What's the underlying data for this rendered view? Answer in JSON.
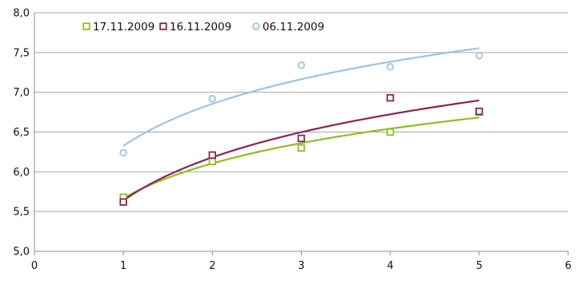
{
  "chart_data": {
    "type": "scatter",
    "title": "",
    "xlabel": "",
    "ylabel": "",
    "xlim": [
      0,
      6
    ],
    "ylim": [
      5.0,
      8.0
    ],
    "x_ticks": [
      "0",
      "1",
      "2",
      "3",
      "4",
      "5",
      "6"
    ],
    "y_ticks": [
      "5,0",
      "5,5",
      "6,0",
      "6,5",
      "7,0",
      "7,5",
      "8,0"
    ],
    "grid": "horizontal",
    "legend_position": "top-left",
    "trendline": "logarithmic",
    "series": [
      {
        "name": "17.11.2009",
        "marker": "square",
        "color": "#8dbf1f",
        "x": [
          1,
          2,
          3,
          4,
          5
        ],
        "y": [
          5.68,
          6.13,
          6.3,
          6.5,
          6.75
        ]
      },
      {
        "name": "16.11.2009",
        "marker": "square",
        "color": "#8b2252",
        "x": [
          1,
          2,
          3,
          4,
          5
        ],
        "y": [
          5.62,
          6.21,
          6.42,
          6.93,
          6.76
        ]
      },
      {
        "name": "06.11.2009",
        "marker": "circle",
        "color": "#9dc3e6",
        "x": [
          1,
          2,
          3,
          4,
          5
        ],
        "y": [
          6.24,
          6.92,
          7.34,
          7.32,
          7.46
        ]
      }
    ]
  }
}
